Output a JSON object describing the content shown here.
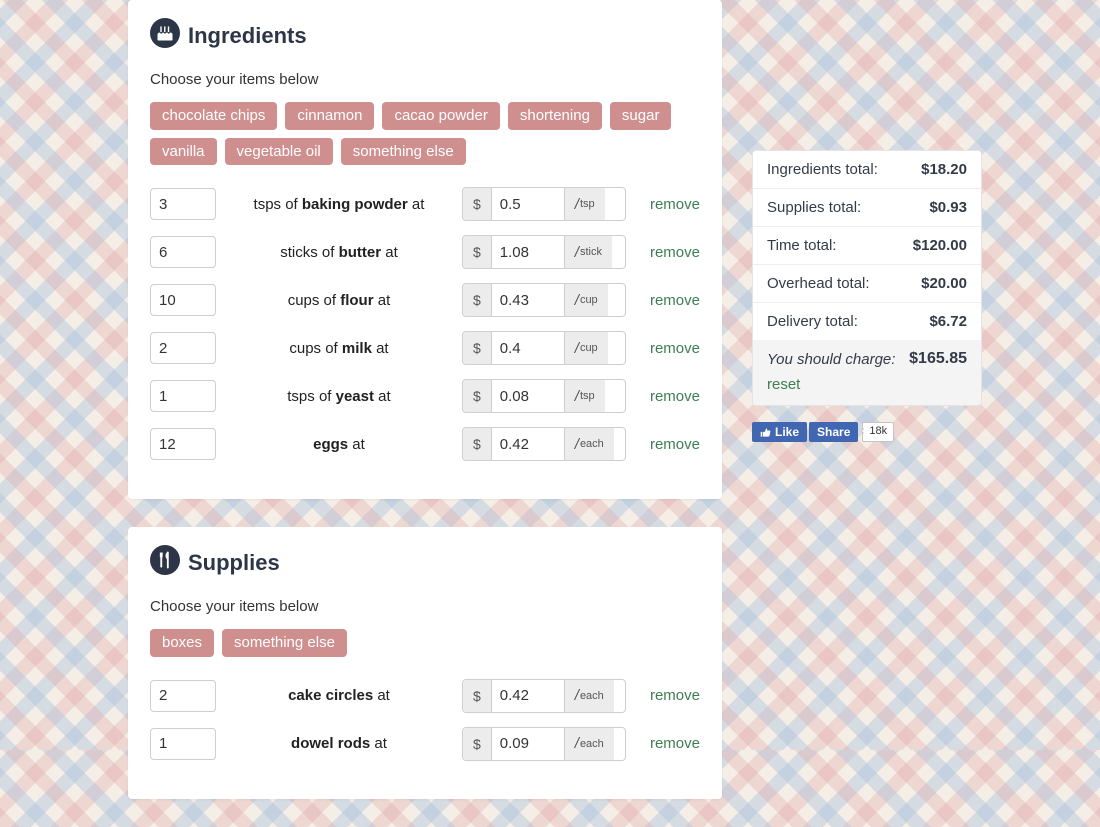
{
  "colors": {
    "tag_bg": "#d08f8f",
    "tag_text": "#ffffff",
    "icon_circle": "#2d3646",
    "link": "#3f7d52",
    "fb_blue": "#4267b2"
  },
  "ingredients": {
    "title": "Ingredients",
    "prompt": "Choose your items below",
    "tags": [
      "chocolate chips",
      "cinnamon",
      "cacao powder",
      "shortening",
      "sugar",
      "vanilla",
      "vegetable oil",
      "something else"
    ],
    "rows": [
      {
        "qty": "3",
        "pre": "tsps of ",
        "name": "baking powder",
        "post": " at",
        "price": "0.5",
        "unit": "tsp"
      },
      {
        "qty": "6",
        "pre": "sticks of ",
        "name": "butter",
        "post": " at",
        "price": "1.08",
        "unit": "stick"
      },
      {
        "qty": "10",
        "pre": "cups of ",
        "name": "flour",
        "post": " at",
        "price": "0.43",
        "unit": "cup"
      },
      {
        "qty": "2",
        "pre": "cups of ",
        "name": "milk",
        "post": " at",
        "price": "0.4",
        "unit": "cup"
      },
      {
        "qty": "1",
        "pre": "tsps of ",
        "name": "yeast",
        "post": " at",
        "price": "0.08",
        "unit": "tsp"
      },
      {
        "qty": "12",
        "pre": "",
        "name": "eggs",
        "post": " at",
        "price": "0.42",
        "unit": "each"
      }
    ],
    "remove_label": "remove"
  },
  "supplies": {
    "title": "Supplies",
    "prompt": "Choose your items below",
    "tags": [
      "boxes",
      "something else"
    ],
    "rows": [
      {
        "qty": "2",
        "pre": "",
        "name": "cake circles",
        "post": " at",
        "price": "0.42",
        "unit": "each"
      },
      {
        "qty": "1",
        "pre": "",
        "name": "dowel rods",
        "post": " at",
        "price": "0.09",
        "unit": "each"
      }
    ],
    "remove_label": "remove"
  },
  "currency_symbol": "$",
  "per_symbol": "/",
  "totals": {
    "lines": [
      {
        "label": "Ingredients total:",
        "value": "$18.20"
      },
      {
        "label": "Supplies total:",
        "value": "$0.93"
      },
      {
        "label": "Time total:",
        "value": "$120.00"
      },
      {
        "label": "Overhead total:",
        "value": "$20.00"
      },
      {
        "label": "Delivery total:",
        "value": "$6.72"
      }
    ],
    "charge_label": "You should charge:",
    "charge_value": "$165.85",
    "reset_label": "reset"
  },
  "fb": {
    "like": "Like",
    "share": "Share",
    "count": "18k"
  }
}
